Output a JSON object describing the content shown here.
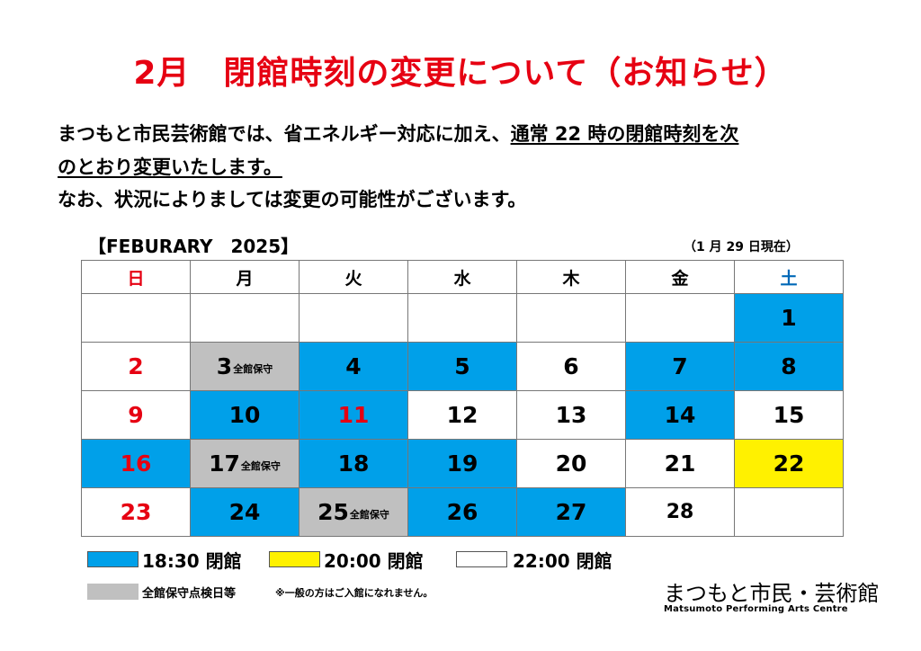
{
  "title": "2月　閉館時刻の変更について（お知らせ）",
  "notice": {
    "line1_a": "まつもと市民芸術館では、省エネルギー対応に加え、",
    "line1_b": "通常 22 時の閉館時刻を次",
    "line2": "のとおり変更いたします。",
    "line3": "なお、状況によりましては変更の可能性がございます。"
  },
  "calendar": {
    "label": "【FEBURARY　2025】",
    "as_of": "（1 月 29 日現在）",
    "weekdays": [
      "日",
      "月",
      "火",
      "水",
      "木",
      "金",
      "土"
    ],
    "maintenance_note": "全館保守",
    "weeks": [
      [
        "",
        "",
        "",
        "",
        "",
        "",
        "1"
      ],
      [
        "2",
        "3",
        "4",
        "5",
        "6",
        "7",
        "8"
      ],
      [
        "9",
        "10",
        "11",
        "12",
        "13",
        "14",
        "15"
      ],
      [
        "16",
        "17",
        "18",
        "19",
        "20",
        "21",
        "22"
      ],
      [
        "23",
        "24",
        "25",
        "26",
        "27",
        "28",
        ""
      ]
    ]
  },
  "legend": {
    "blue_label": "18:30 閉館",
    "yellow_label": "20:00 閉館",
    "white_label": "22:00 閉館",
    "gray_label": "全館保守点検日等",
    "gray_note": "※一般の方はご入館になれません。"
  },
  "colors": {
    "blue": "#00a0e9",
    "yellow": "#fff100",
    "gray": "#c0c0c0",
    "red": "#e60012"
  },
  "logo": {
    "japanese": "まつもと市民・芸術館",
    "english": "Matsumoto Performing Arts Centre"
  }
}
